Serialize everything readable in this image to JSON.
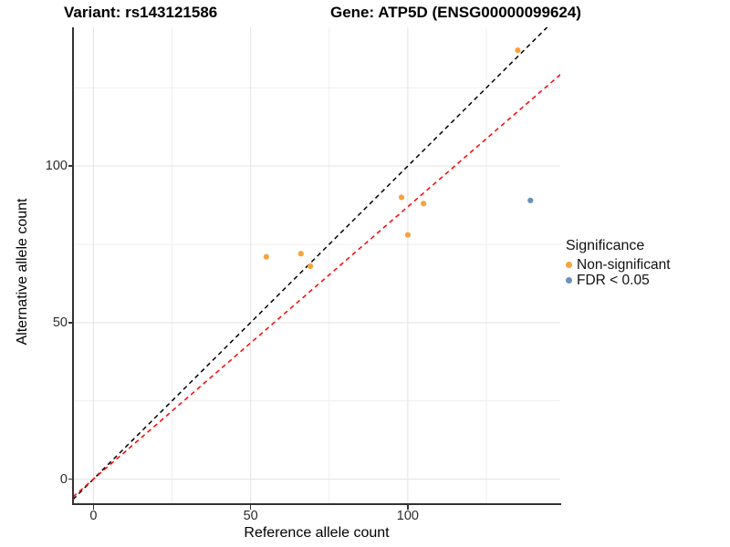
{
  "titles": {
    "variant": "Variant: rs143121586",
    "gene": "Gene: ATP5D (ENSG00000099624)"
  },
  "chart_data": {
    "type": "scatter",
    "xlabel": "Reference allele count",
    "ylabel": "Alternative allele count",
    "xlim": [
      -6.5,
      148.5
    ],
    "ylim": [
      -8,
      144.3
    ],
    "x_major_ticks": [
      0,
      50,
      100
    ],
    "y_major_ticks": [
      0,
      50,
      100
    ],
    "x_minor_ticks": [
      25,
      75,
      125
    ],
    "y_minor_ticks": [
      25,
      75,
      125
    ],
    "grid": true,
    "legend_position": "right",
    "series": [
      {
        "name": "Non-significant",
        "color": "#F8A33C",
        "points": [
          [
            55,
            71
          ],
          [
            66,
            72
          ],
          [
            69,
            68
          ],
          [
            98,
            90
          ],
          [
            100,
            78
          ],
          [
            105,
            88
          ],
          [
            135,
            137
          ]
        ]
      },
      {
        "name": "FDR < 0.05",
        "color": "#6B90BA",
        "points": [
          [
            139,
            89
          ]
        ]
      }
    ],
    "lines": [
      {
        "name": "identity-line",
        "slope": 1,
        "intercept": 0,
        "color": "#000000"
      },
      {
        "name": "expected-ratio-line",
        "slope": 0.87,
        "intercept": 0,
        "color": "#FF0000"
      }
    ],
    "legend": {
      "title": "Significance",
      "items": [
        {
          "label": "Non-significant",
          "color": "#F8A33C"
        },
        {
          "label": "FDR < 0.05",
          "color": "#6B90BA"
        }
      ]
    }
  },
  "style_colors": {
    "grid_major": "#E3E3E3",
    "grid_minor": "#EFEFEF",
    "axis_line": "#333333"
  }
}
